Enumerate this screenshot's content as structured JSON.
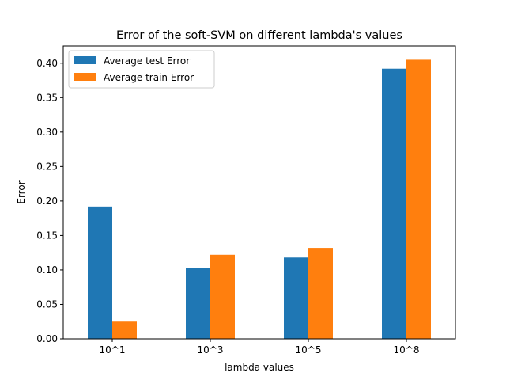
{
  "chart_data": {
    "type": "bar",
    "title": "Error of the soft-SVM on different lambda's values",
    "xlabel": "lambda values",
    "ylabel": "Error",
    "categories": [
      "10^1",
      "10^3",
      "10^5",
      "10^8"
    ],
    "series": [
      {
        "name": "Average test Error",
        "color": "#1f77b4",
        "values": [
          0.192,
          0.103,
          0.118,
          0.392
        ]
      },
      {
        "name": "Average train Error",
        "color": "#ff7f0e",
        "values": [
          0.025,
          0.122,
          0.132,
          0.405
        ]
      }
    ],
    "ylim": [
      0,
      0.425
    ],
    "yticks": [
      0.0,
      0.05,
      0.1,
      0.15,
      0.2,
      0.25,
      0.3,
      0.35,
      0.4
    ],
    "ytick_labels": [
      "0.00",
      "0.05",
      "0.10",
      "0.15",
      "0.20",
      "0.25",
      "0.30",
      "0.35",
      "0.40"
    ],
    "grid": false,
    "legend": "top-left"
  }
}
